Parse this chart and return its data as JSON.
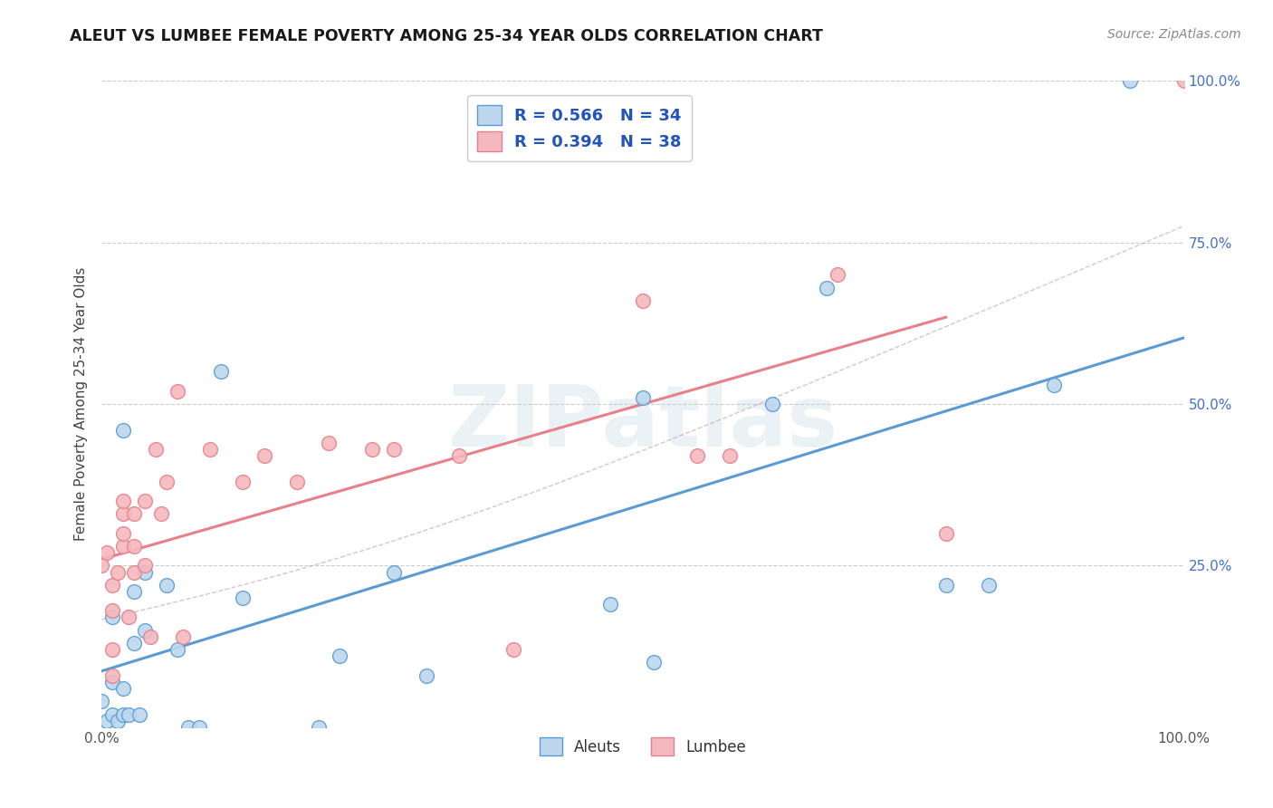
{
  "title": "ALEUT VS LUMBEE FEMALE POVERTY AMONG 25-34 YEAR OLDS CORRELATION CHART",
  "source": "Source: ZipAtlas.com",
  "ylabel": "Female Poverty Among 25-34 Year Olds",
  "background_color": "#ffffff",
  "watermark_text": "ZIPatlas",
  "aleuts_color": "#5b9bd5",
  "aleuts_color_fill": "#bdd7ee",
  "lumbee_color": "#e8808a",
  "lumbee_color_fill": "#f4b8be",
  "aleuts_R": 0.566,
  "aleuts_N": 34,
  "lumbee_R": 0.394,
  "lumbee_N": 38,
  "xlim": [
    0.0,
    1.0
  ],
  "ylim": [
    0.0,
    1.0
  ],
  "ytick_vals": [
    0.25,
    0.5,
    0.75,
    1.0
  ],
  "ytick_labels": [
    "25.0%",
    "50.0%",
    "75.0%",
    "100.0%"
  ],
  "xtick_vals": [
    0.0,
    1.0
  ],
  "xtick_labels": [
    "0.0%",
    "100.0%"
  ],
  "aleuts_x": [
    0.0,
    0.005,
    0.01,
    0.01,
    0.01,
    0.015,
    0.02,
    0.02,
    0.02,
    0.025,
    0.03,
    0.03,
    0.035,
    0.04,
    0.04,
    0.06,
    0.07,
    0.08,
    0.09,
    0.11,
    0.13,
    0.2,
    0.22,
    0.27,
    0.3,
    0.47,
    0.5,
    0.51,
    0.62,
    0.67,
    0.78,
    0.82,
    0.88,
    0.95
  ],
  "aleuts_y": [
    0.04,
    0.01,
    0.02,
    0.07,
    0.17,
    0.01,
    0.02,
    0.06,
    0.46,
    0.02,
    0.13,
    0.21,
    0.02,
    0.15,
    0.24,
    0.22,
    0.12,
    0.0,
    0.0,
    0.55,
    0.2,
    0.0,
    0.11,
    0.24,
    0.08,
    0.19,
    0.51,
    0.1,
    0.5,
    0.68,
    0.22,
    0.22,
    0.53,
    1.0
  ],
  "lumbee_x": [
    0.0,
    0.005,
    0.01,
    0.01,
    0.01,
    0.01,
    0.015,
    0.02,
    0.02,
    0.02,
    0.02,
    0.025,
    0.03,
    0.03,
    0.03,
    0.04,
    0.04,
    0.045,
    0.05,
    0.055,
    0.06,
    0.07,
    0.075,
    0.1,
    0.13,
    0.15,
    0.18,
    0.21,
    0.25,
    0.27,
    0.33,
    0.38,
    0.5,
    0.55,
    0.58,
    0.68,
    0.78,
    1.0
  ],
  "lumbee_y": [
    0.25,
    0.27,
    0.08,
    0.12,
    0.18,
    0.22,
    0.24,
    0.28,
    0.3,
    0.33,
    0.35,
    0.17,
    0.24,
    0.28,
    0.33,
    0.25,
    0.35,
    0.14,
    0.43,
    0.33,
    0.38,
    0.52,
    0.14,
    0.43,
    0.38,
    0.42,
    0.38,
    0.44,
    0.43,
    0.43,
    0.42,
    0.12,
    0.66,
    0.42,
    0.42,
    0.7,
    0.3,
    1.0
  ],
  "grid_color": "#cccccc",
  "legend_box_color": "#dddddd"
}
